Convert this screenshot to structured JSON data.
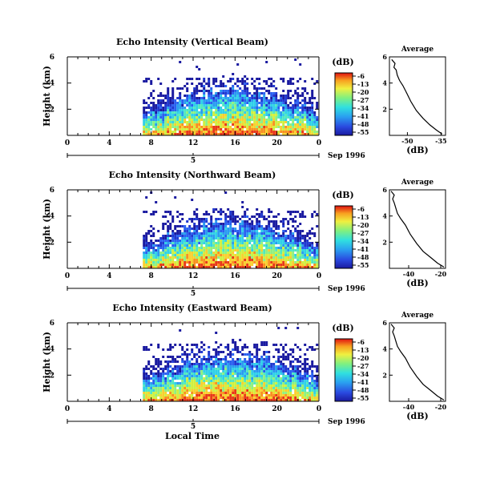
{
  "figure": {
    "date_label": "Sep 1996",
    "xlabel": "Local Time"
  },
  "chart_data": [
    {
      "type": "heatmap",
      "title": "Echo Intensity (Vertical Beam)",
      "ylabel": "Height (km)",
      "xlim": [
        0,
        24
      ],
      "ylim": [
        0,
        6
      ],
      "x_ticks": [
        "0",
        "4",
        "8",
        "12",
        "16",
        "20",
        "0"
      ],
      "y_ticks": [
        "2",
        "4",
        "6"
      ],
      "date_tick": "5",
      "data_start_hour": 7.2,
      "colorbar": {
        "unit": "(dB)",
        "ticks": [
          "-6",
          "-13",
          "-20",
          "-27",
          "-34",
          "-41",
          "-48",
          "-55"
        ]
      },
      "profile": {
        "title": "Average",
        "xlabel": "(dB)",
        "x_ticks": [
          "-50",
          "-35"
        ],
        "y_ticks": [
          "2",
          "4",
          "6"
        ],
        "xlim": [
          -58,
          -33
        ],
        "points": [
          [
            -34.5,
            0.1
          ],
          [
            -37,
            0.4
          ],
          [
            -40,
            0.8
          ],
          [
            -43,
            1.3
          ],
          [
            -46,
            1.9
          ],
          [
            -48.5,
            2.6
          ],
          [
            -50.5,
            3.3
          ],
          [
            -52,
            3.8
          ],
          [
            -53.5,
            4.2
          ],
          [
            -54.5,
            4.6
          ],
          [
            -55,
            5.0
          ],
          [
            -56,
            5.2
          ],
          [
            -55.5,
            5.5
          ],
          [
            -57,
            5.8
          ]
        ]
      }
    },
    {
      "type": "heatmap",
      "title": "Echo Intensity (Northward Beam)",
      "ylabel": "Height (km)",
      "xlim": [
        0,
        24
      ],
      "ylim": [
        0,
        6
      ],
      "x_ticks": [
        "0",
        "4",
        "8",
        "12",
        "16",
        "20",
        "0"
      ],
      "y_ticks": [
        "2",
        "4",
        "6"
      ],
      "date_tick": "5",
      "data_start_hour": 7.2,
      "colorbar": {
        "unit": "(dB)",
        "ticks": [
          "-6",
          "-13",
          "-20",
          "-27",
          "-34",
          "-41",
          "-48",
          "-55"
        ]
      },
      "profile": {
        "title": "Average",
        "xlabel": "(dB)",
        "x_ticks": [
          "-40",
          "-20"
        ],
        "y_ticks": [
          "2",
          "4",
          "6"
        ],
        "xlim": [
          -52,
          -17
        ],
        "points": [
          [
            -18,
            0.1
          ],
          [
            -22,
            0.4
          ],
          [
            -26,
            0.8
          ],
          [
            -31,
            1.3
          ],
          [
            -35,
            1.9
          ],
          [
            -39,
            2.6
          ],
          [
            -42,
            3.3
          ],
          [
            -45,
            3.8
          ],
          [
            -47,
            4.2
          ],
          [
            -48,
            4.6
          ],
          [
            -49,
            5.0
          ],
          [
            -50,
            5.3
          ],
          [
            -49,
            5.6
          ],
          [
            -51,
            5.9
          ]
        ]
      }
    },
    {
      "type": "heatmap",
      "title": "Echo Intensity (Eastward Beam)",
      "ylabel": "Height (km)",
      "xlim": [
        0,
        24
      ],
      "ylim": [
        0,
        6
      ],
      "x_ticks": [
        "0",
        "4",
        "8",
        "12",
        "16",
        "20",
        "0"
      ],
      "y_ticks": [
        "2",
        "4",
        "6"
      ],
      "date_tick": "5",
      "data_start_hour": 7.2,
      "colorbar": {
        "unit": "(dB)",
        "ticks": [
          "-6",
          "-13",
          "-20",
          "-27",
          "-34",
          "-41",
          "-48",
          "-55"
        ]
      },
      "profile": {
        "title": "Average",
        "xlabel": "(dB)",
        "x_ticks": [
          "-40",
          "-20"
        ],
        "y_ticks": [
          "2",
          "4",
          "6"
        ],
        "xlim": [
          -52,
          -17
        ],
        "points": [
          [
            -18,
            0.1
          ],
          [
            -22,
            0.4
          ],
          [
            -26,
            0.8
          ],
          [
            -31,
            1.3
          ],
          [
            -35,
            1.9
          ],
          [
            -39,
            2.6
          ],
          [
            -42,
            3.3
          ],
          [
            -45,
            3.8
          ],
          [
            -47,
            4.2
          ],
          [
            -48,
            4.6
          ],
          [
            -49,
            5.0
          ],
          [
            -50,
            5.3
          ],
          [
            -49,
            5.6
          ],
          [
            -51,
            5.9
          ]
        ]
      }
    }
  ]
}
